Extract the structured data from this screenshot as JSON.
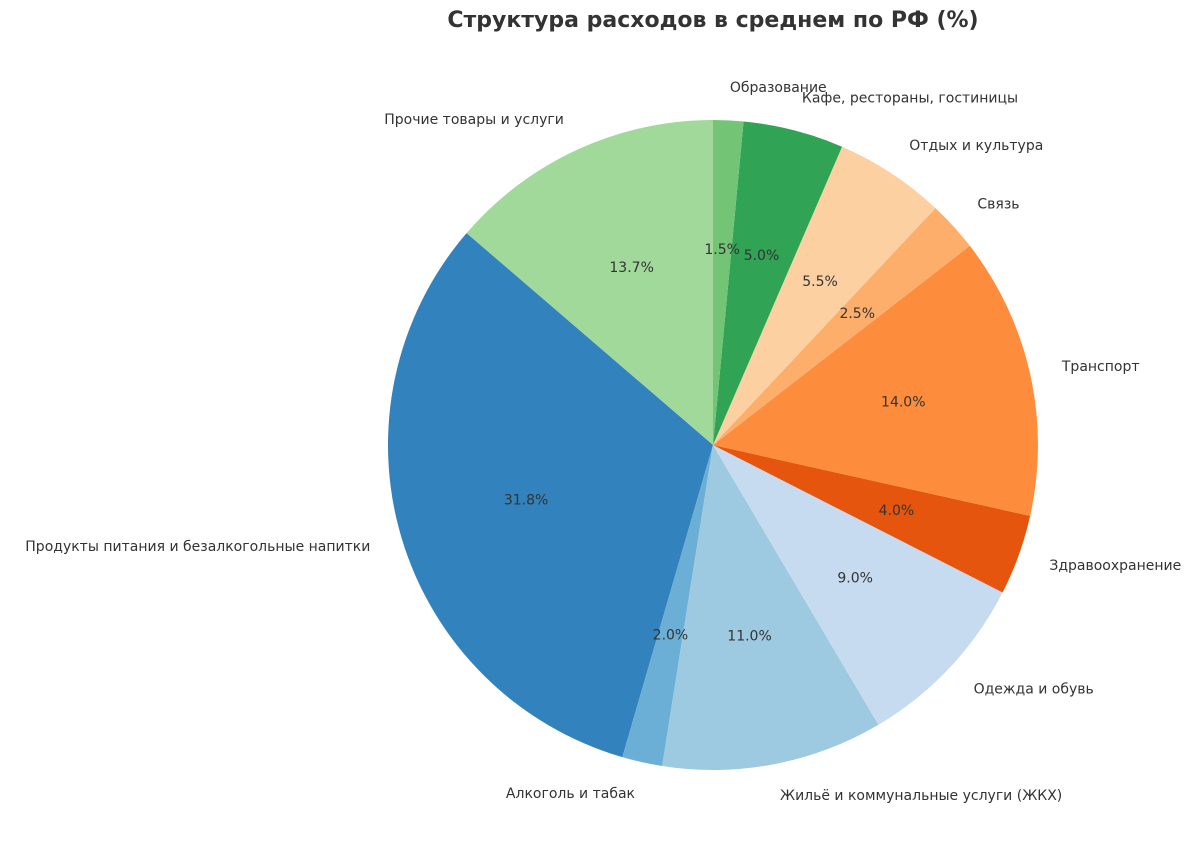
{
  "chart_data": {
    "type": "pie",
    "title": "Структура расходов в среднем по РФ (%)",
    "start_angle_deg": 90,
    "direction": "counterclockwise",
    "slices": [
      {
        "label": "Прочие товары и услуги",
        "value": 13.7,
        "pct_label": "13.7%",
        "color": "#a1d99b"
      },
      {
        "label": "Продукты питания и безалкогольные напитки",
        "value": 31.8,
        "pct_label": "31.8%",
        "color": "#3182bd"
      },
      {
        "label": "Алкоголь и табак",
        "value": 2.0,
        "pct_label": "2.0%",
        "color": "#6baed6"
      },
      {
        "label": "Жильё и коммунальные услуги (ЖКХ)",
        "value": 11.0,
        "pct_label": "11.0%",
        "color": "#9ecae1"
      },
      {
        "label": "Одежда и обувь",
        "value": 9.0,
        "pct_label": "9.0%",
        "color": "#c6dbef"
      },
      {
        "label": "Здравоохранение",
        "value": 4.0,
        "pct_label": "4.0%",
        "color": "#e6550d"
      },
      {
        "label": "Транспорт",
        "value": 14.0,
        "pct_label": "14.0%",
        "color": "#fd8d3c"
      },
      {
        "label": "Связь",
        "value": 2.5,
        "pct_label": "2.5%",
        "color": "#fdae6b"
      },
      {
        "label": "Отдых и культура",
        "value": 5.5,
        "pct_label": "5.5%",
        "color": "#fdd0a2"
      },
      {
        "label": "Кафе, рестораны, гостиницы",
        "value": 5.0,
        "pct_label": "5.0%",
        "color": "#31a354"
      },
      {
        "label": "Образование",
        "value": 1.5,
        "pct_label": "1.5%",
        "color": "#74c476"
      }
    ]
  }
}
